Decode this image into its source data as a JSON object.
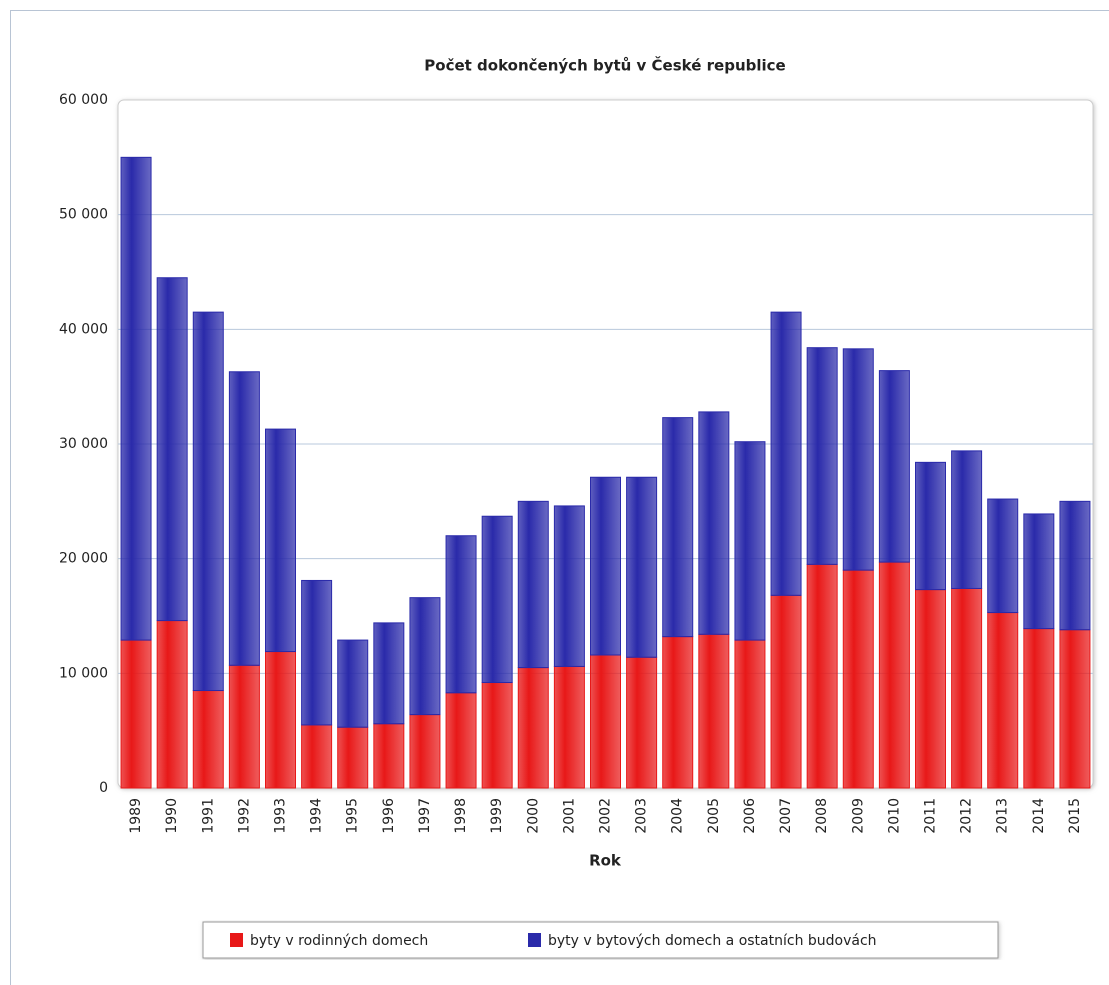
{
  "chart_data": {
    "type": "stacked_bar",
    "title": "Počet dokončených bytů v České republice",
    "x_label": "Rok",
    "categories": [
      "1989",
      "1990",
      "1991",
      "1992",
      "1993",
      "1994",
      "1995",
      "1996",
      "1997",
      "1998",
      "1999",
      "2000",
      "2001",
      "2002",
      "2003",
      "2004",
      "2005",
      "2006",
      "2007",
      "2008",
      "2009",
      "2010",
      "2011",
      "2012",
      "2013",
      "2014",
      "2015"
    ],
    "series": [
      {
        "name": "byty v rodinných domech",
        "color": "#e81818",
        "values": [
          12900,
          14600,
          8500,
          10700,
          11900,
          5500,
          5300,
          5600,
          6400,
          8300,
          9200,
          10500,
          10600,
          11600,
          11400,
          13200,
          13400,
          12900,
          16800,
          19500,
          19000,
          19700,
          17300,
          17400,
          15300,
          13900,
          13800
        ]
      },
      {
        "name": "byty v bytových domech a ostatních budovách",
        "color": "#2a2aaa",
        "values": [
          42100,
          29900,
          33000,
          25600,
          19400,
          12600,
          7600,
          8800,
          10200,
          13700,
          14500,
          14500,
          14000,
          15500,
          15700,
          19100,
          19400,
          17300,
          24700,
          18900,
          19300,
          16700,
          11100,
          12000,
          9900,
          10000,
          11200
        ]
      }
    ],
    "ylim": [
      0,
      60000
    ],
    "yticks": [
      0,
      {
        "value": 10000,
        "label": "10 000"
      },
      {
        "value": 20000,
        "label": "20 000"
      },
      {
        "value": 30000,
        "label": "30 000"
      },
      {
        "value": 40000,
        "label": "40 000"
      },
      {
        "value": 50000,
        "label": "50 000"
      },
      {
        "value": 60000,
        "label": "60 000"
      }
    ],
    "grid": true,
    "legend": "bottom"
  }
}
